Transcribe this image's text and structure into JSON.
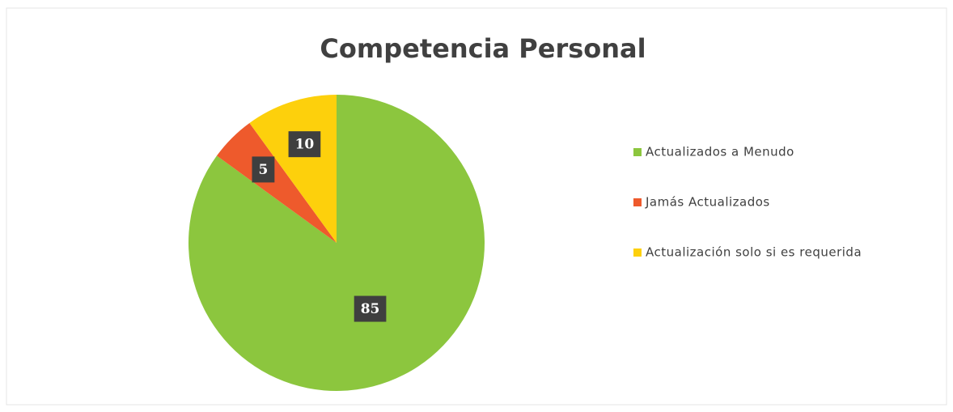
{
  "chart_data": {
    "type": "pie",
    "title": "Competencia Personal",
    "categories": [
      "Actualizados a Menudo",
      "Jamás Actualizados",
      "Actualización solo si es requerida"
    ],
    "values": [
      85,
      5,
      10
    ],
    "colors": [
      "#8cc63e",
      "#ee5a2c",
      "#fdd00c"
    ],
    "legend": "right"
  }
}
